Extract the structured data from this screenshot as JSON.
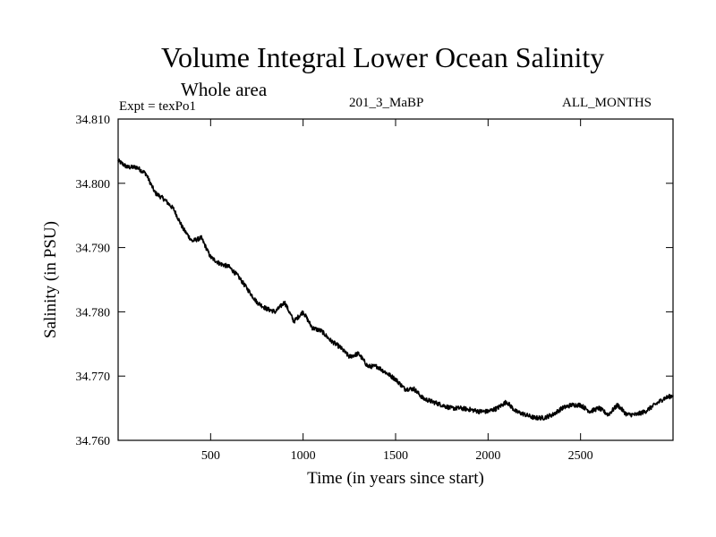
{
  "header": {
    "title": "Volume Integral Lower Ocean Salinity",
    "subtitle": "Whole area",
    "expt_label": "Expt = texPo1",
    "run_code": "201_3_MaBP",
    "months_label": "ALL_MONTHS"
  },
  "chart_data": {
    "type": "line",
    "title": "Volume Integral Lower Ocean Salinity",
    "xlabel": "Time (in years since start)",
    "ylabel": "Salinity (in PSU)",
    "xlim": [
      0,
      3000
    ],
    "ylim": [
      34.76,
      34.81
    ],
    "x_ticks": [
      500,
      1000,
      1500,
      2000,
      2500
    ],
    "x_tick_labels": [
      "500",
      "1000",
      "1500",
      "2000",
      "2500"
    ],
    "y_ticks": [
      34.76,
      34.77,
      34.78,
      34.79,
      34.8,
      34.81
    ],
    "y_tick_labels": [
      "34.760",
      "34.770",
      "34.780",
      "34.790",
      "34.800",
      "34.810"
    ],
    "grid": false,
    "series": [
      {
        "x": [
          0,
          50,
          100,
          150,
          200,
          250,
          300,
          350,
          400,
          450,
          500,
          550,
          600,
          650,
          700,
          750,
          800,
          850,
          900,
          950,
          1000,
          1050,
          1100,
          1150,
          1200,
          1250,
          1300,
          1350,
          1400,
          1450,
          1500,
          1550,
          1600,
          1650,
          1700,
          1750,
          1800,
          1850,
          1900,
          1950,
          2000,
          2050,
          2100,
          2150,
          2200,
          2250,
          2300,
          2350,
          2400,
          2450,
          2500,
          2550,
          2600,
          2650,
          2700,
          2750,
          2800,
          2850,
          2900,
          2950,
          3000
        ],
        "values": [
          34.8035,
          34.8025,
          34.8025,
          34.8015,
          34.7985,
          34.7975,
          34.796,
          34.793,
          34.791,
          34.7915,
          34.7885,
          34.7875,
          34.787,
          34.7855,
          34.7835,
          34.7815,
          34.7805,
          34.78,
          34.7815,
          34.7785,
          34.78,
          34.7775,
          34.777,
          34.7755,
          34.7745,
          34.773,
          34.7735,
          34.7715,
          34.7715,
          34.7705,
          34.7695,
          34.768,
          34.768,
          34.7665,
          34.766,
          34.7655,
          34.765,
          34.765,
          34.7648,
          34.7645,
          34.7645,
          34.765,
          34.766,
          34.7645,
          34.764,
          34.7635,
          34.7635,
          34.764,
          34.765,
          34.7655,
          34.7655,
          34.7645,
          34.765,
          34.764,
          34.7655,
          34.764,
          34.764,
          34.7645,
          34.7655,
          34.7665,
          34.767
        ]
      }
    ]
  }
}
